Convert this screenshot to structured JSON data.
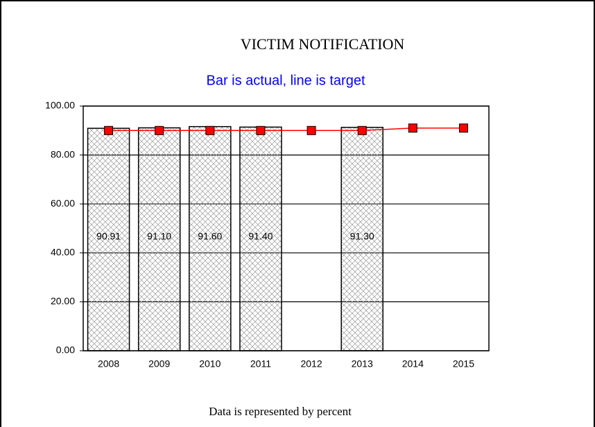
{
  "chart_data": {
    "type": "bar",
    "title": "VICTIM NOTIFICATION",
    "subtitle": "Bar is actual, line is target",
    "footer": "Data is represented by percent",
    "categories": [
      "2008",
      "2009",
      "2010",
      "2011",
      "2012",
      "2013",
      "2014",
      "2015"
    ],
    "series": [
      {
        "type": "bar",
        "color": "#999999",
        "values": [
          90.91,
          91.1,
          91.6,
          91.4,
          null,
          91.3,
          null,
          null
        ],
        "value_labels": [
          "90.91",
          "91.10",
          "91.60",
          "91.40",
          null,
          "91.30",
          null,
          null
        ]
      },
      {
        "type": "line",
        "color": "#ff0000",
        "values": [
          90,
          90,
          90,
          90,
          90,
          90,
          91,
          91
        ]
      }
    ],
    "ylim": [
      0,
      100
    ],
    "yticks": [
      {
        "value": 0,
        "label": "0.00"
      },
      {
        "value": 20,
        "label": "20.00"
      },
      {
        "value": 40,
        "label": "40.00"
      },
      {
        "value": 60,
        "label": "60.00"
      },
      {
        "value": 80,
        "label": "80.00"
      },
      {
        "value": 100,
        "label": "100.00"
      }
    ],
    "grid": true
  }
}
